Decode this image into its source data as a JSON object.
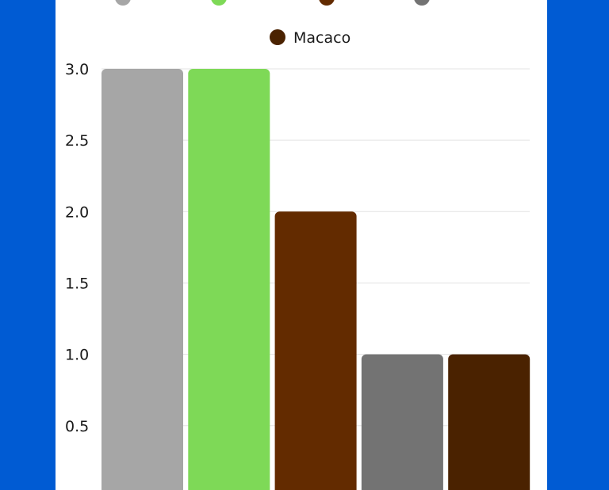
{
  "colors": {
    "background": "#005bd3",
    "card": "#ffffff",
    "grid": "#e3e3e3"
  },
  "chart_data": {
    "type": "bar",
    "categories": [
      "",
      "",
      "",
      "",
      "Macaco"
    ],
    "values": [
      3,
      3,
      2,
      1,
      1
    ],
    "colors": [
      "#a6a6a6",
      "#7ed957",
      "#632b00",
      "#737373",
      "#4a2200"
    ],
    "ylim": [
      0,
      3
    ],
    "yticks": [
      "3.0",
      "2.5",
      "2.0",
      "1.5",
      "1.0",
      "0.5"
    ],
    "legend": {
      "position": "top",
      "entries": [
        {
          "label": "",
          "color": "#a6a6a6"
        },
        {
          "label": "",
          "color": "#7ed957"
        },
        {
          "label": "",
          "color": "#632b00"
        },
        {
          "label": "",
          "color": "#737373"
        },
        {
          "label": "Macaco",
          "color": "#4a2200"
        }
      ]
    },
    "grid": true,
    "title": "",
    "xlabel": "",
    "ylabel": ""
  }
}
